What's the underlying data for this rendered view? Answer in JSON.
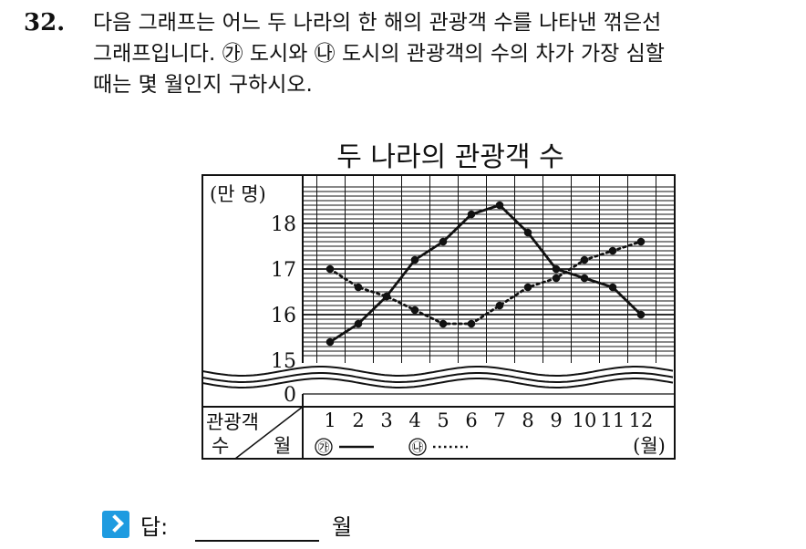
{
  "question": {
    "number": "32.",
    "lines": [
      "다음 그래프는 어느 두 나라의 한 해의 관광객 수를 나타낸 꺾은선",
      "그래프입니다. ㉮ 도시와 ㉯ 도시의 관광객의 수의 차가 가장 심할",
      "때는 몇 월인지 구하시오."
    ]
  },
  "chart_data": {
    "type": "line",
    "title": "두 나라의 관광객 수",
    "y_unit_label": "(만 명)",
    "x_unit_label": "(월)",
    "corner_label_top": "관광객",
    "corner_label_bottom_left": "수",
    "corner_label_bottom_right": "월",
    "categories": [
      "1",
      "2",
      "3",
      "4",
      "5",
      "6",
      "7",
      "8",
      "9",
      "10",
      "11",
      "12"
    ],
    "y_ticks": [
      "18",
      "17",
      "16",
      "15",
      "0"
    ],
    "ylim": [
      15,
      18.5
    ],
    "axis_break": true,
    "grid": true,
    "legend_position": "bottom",
    "series": [
      {
        "name": "㉮",
        "style": "solid",
        "values": [
          15.4,
          15.8,
          16.4,
          17.2,
          17.6,
          18.2,
          18.4,
          17.8,
          17.0,
          16.8,
          16.6,
          16.0
        ]
      },
      {
        "name": "㉯",
        "style": "dotted",
        "values": [
          17.0,
          16.6,
          16.4,
          16.1,
          15.8,
          15.8,
          16.2,
          16.6,
          16.8,
          17.2,
          17.4,
          17.6
        ]
      }
    ],
    "colors": {
      "line": "#111111",
      "grid": "#111111"
    }
  },
  "answer": {
    "label": "답:",
    "unit": "월",
    "icon": "chevron-right-icon",
    "icon_color": "#1e9be0"
  }
}
